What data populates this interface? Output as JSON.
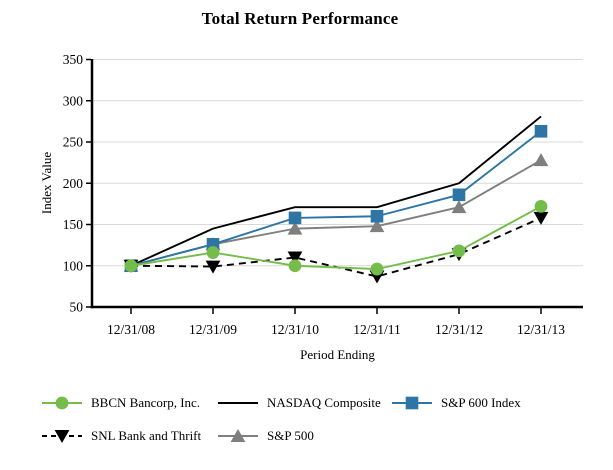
{
  "chart_data": {
    "type": "line",
    "title": "Total Return Performance",
    "xlabel": "Period Ending",
    "ylabel": "Index Value",
    "categories": [
      "12/31/08",
      "12/31/09",
      "12/31/10",
      "12/31/11",
      "12/31/12",
      "12/31/13"
    ],
    "ylim": [
      50,
      350
    ],
    "yticks": [
      50,
      100,
      150,
      200,
      250,
      300,
      350
    ],
    "grid": "horizontal-light-gray",
    "legend_position": "bottom",
    "colors": {
      "bbcn_green": "#75BD4A",
      "nasdaq_black": "#000000",
      "sp600_blue": "#2E74A4",
      "snl_black": "#000000",
      "sp500_gray": "#7F7F7F",
      "gridline": "#D9D9D9",
      "axis": "#000000"
    },
    "series": [
      {
        "name": "BBCN Bancorp, Inc.",
        "color": "#75BD4A",
        "marker": "circle",
        "dash": "solid",
        "values": [
          100,
          116,
          100,
          96,
          118,
          172
        ]
      },
      {
        "name": "NASDAQ Composite",
        "color": "#000000",
        "marker": "none",
        "dash": "solid",
        "values": [
          100,
          145,
          171,
          171,
          200,
          281
        ]
      },
      {
        "name": "S&P 600 Index",
        "color": "#2E74A4",
        "marker": "square",
        "dash": "solid",
        "values": [
          100,
          126,
          158,
          160,
          186,
          263
        ]
      },
      {
        "name": "SNL Bank and Thrift",
        "color": "#000000",
        "marker": "triangle-down",
        "dash": "dashed",
        "values": [
          100,
          99,
          110,
          87,
          114,
          158
        ]
      },
      {
        "name": "S&P 500",
        "color": "#7F7F7F",
        "marker": "triangle-up",
        "dash": "solid",
        "values": [
          100,
          126,
          145,
          148,
          171,
          228
        ]
      }
    ],
    "legend_rows": [
      [
        0,
        1,
        2
      ],
      [
        3,
        4
      ]
    ],
    "draw_order": [
      1,
      4,
      2,
      3,
      0
    ]
  }
}
